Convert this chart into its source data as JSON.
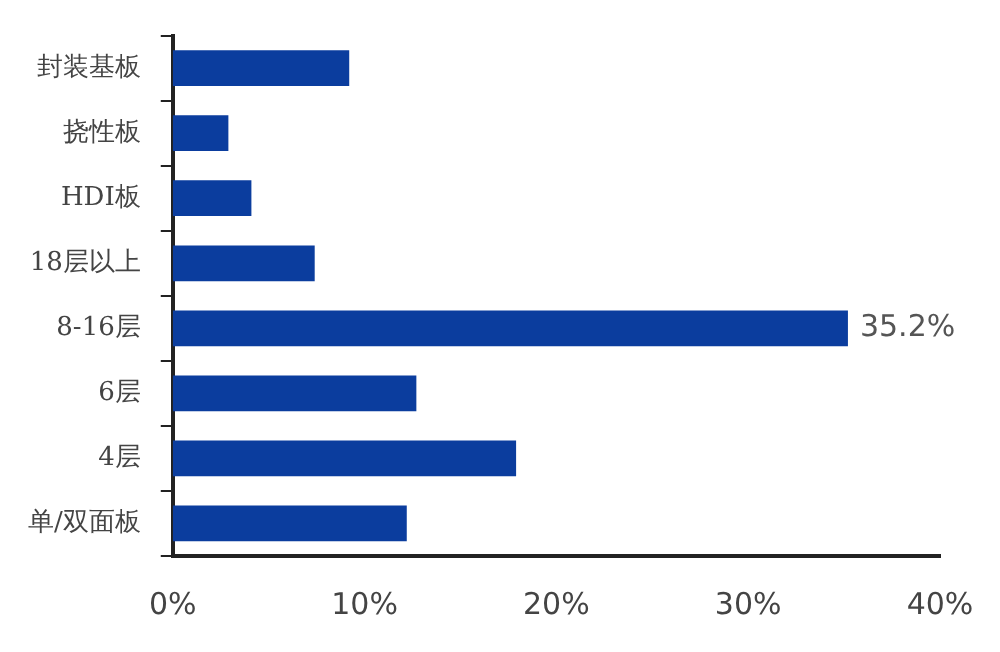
{
  "chart_data": {
    "type": "bar",
    "orientation": "horizontal",
    "categories": [
      "封装基板",
      "挠性板",
      "HDI板",
      "18层以上",
      "8-16层",
      "6层",
      "4层",
      "单/双面板"
    ],
    "values": [
      9.2,
      2.9,
      4.1,
      7.4,
      35.2,
      12.7,
      17.9,
      12.2
    ],
    "value_labels": [
      null,
      null,
      null,
      null,
      "35.2%",
      null,
      null,
      null
    ],
    "color": "#0b3d9e",
    "xlim": [
      0,
      40
    ],
    "xticks": [
      {
        "value": 0,
        "label": "0%"
      },
      {
        "value": 10,
        "label": "10%"
      },
      {
        "value": 20,
        "label": "20%"
      },
      {
        "value": 30,
        "label": "30%"
      },
      {
        "value": 40,
        "label": "40%"
      }
    ],
    "grid": false,
    "legend": false
  }
}
